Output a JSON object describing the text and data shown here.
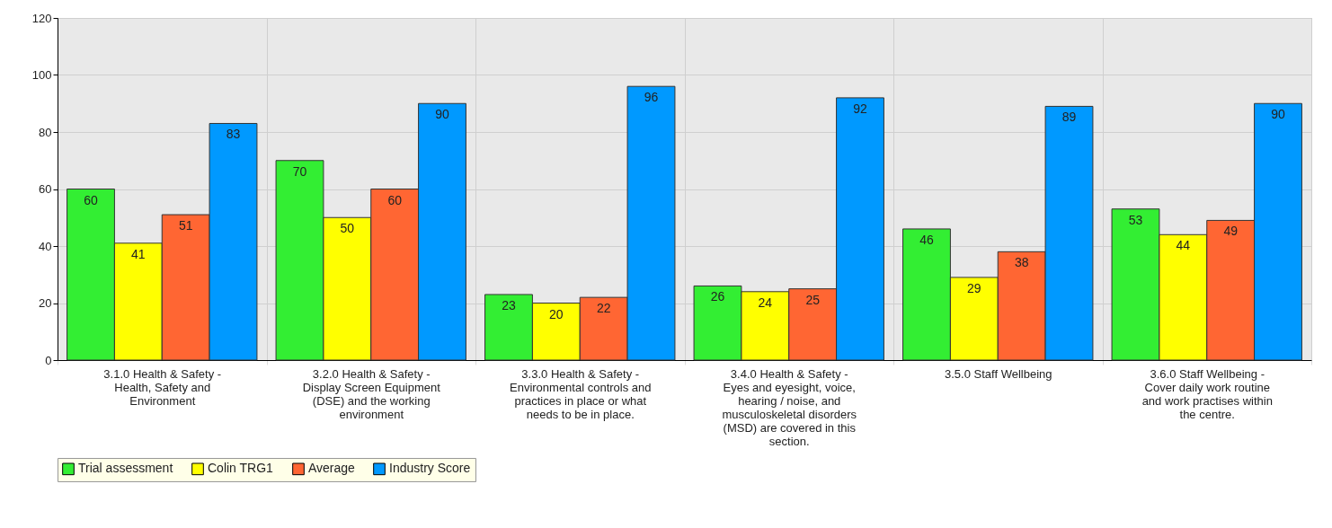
{
  "chart_data": {
    "type": "bar",
    "categories": [
      "3.1.0 Health & Safety - Health, Safety and Environment",
      "3.2.0 Health & Safety - Display Screen Equipment (DSE) and the working environment",
      "3.3.0 Health & Safety - Environmental controls and practices in place or what needs to be in place.",
      "3.4.0 Health & Safety - Eyes and eyesight, voice, hearing / noise, and musculoskeletal disorders (MSD) are covered in this section.",
      "3.5.0 Staff Wellbeing",
      "3.6.0 Staff Wellbeing - Cover daily work routine and work practises within the centre."
    ],
    "series": [
      {
        "name": "Trial assessment",
        "color": "#33ee33",
        "values": [
          60,
          70,
          23,
          26,
          46,
          53
        ]
      },
      {
        "name": "Colin TRG1",
        "color": "#ffff00",
        "values": [
          41,
          50,
          20,
          24,
          29,
          44
        ]
      },
      {
        "name": "Average",
        "color": "#ff6633",
        "values": [
          51,
          60,
          22,
          25,
          38,
          49
        ]
      },
      {
        "name": "Industry Score",
        "color": "#0099ff",
        "values": [
          83,
          90,
          96,
          92,
          89,
          90
        ]
      }
    ],
    "ylim": [
      0,
      120
    ],
    "yticks": [
      0,
      20,
      40,
      60,
      80,
      100,
      120
    ],
    "grid": true,
    "legend": "bottom",
    "data_labels": true
  }
}
